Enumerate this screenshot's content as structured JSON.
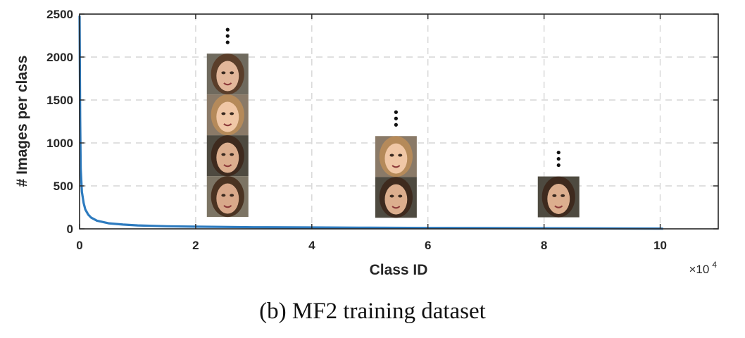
{
  "chart_data": {
    "type": "line",
    "title": "",
    "xlabel": "Class ID",
    "ylabel": "# Images per class",
    "x_exponent_label": "×10",
    "x_exponent_power": "4",
    "xlim": [
      0,
      11
    ],
    "ylim": [
      0,
      2500
    ],
    "x_ticks": [
      0,
      2,
      4,
      6,
      8,
      10
    ],
    "x_tick_labels": [
      "0",
      "2",
      "4",
      "6",
      "8",
      "10"
    ],
    "y_ticks": [
      0,
      500,
      1000,
      1500,
      2000,
      2500
    ],
    "y_tick_labels": [
      "0",
      "500",
      "1000",
      "1500",
      "2000",
      "2500"
    ],
    "grid": true,
    "series": [
      {
        "color": "#2d7bbf",
        "x": [
          0,
          0.01,
          0.02,
          0.04,
          0.07,
          0.1,
          0.15,
          0.2,
          0.3,
          0.5,
          0.75,
          1,
          1.5,
          2,
          3,
          4,
          5,
          6,
          7,
          8,
          9,
          10,
          10.05
        ],
        "y": [
          2480,
          1300,
          700,
          430,
          300,
          225,
          165,
          130,
          95,
          65,
          50,
          40,
          30,
          25,
          19,
          16,
          13,
          11,
          9,
          7,
          5,
          3,
          2
        ]
      }
    ],
    "annotations": [
      {
        "type": "face-stack",
        "x_center": 2.55,
        "faces": 4,
        "top_value": 2040,
        "bottom_value": 150
      },
      {
        "type": "face-stack",
        "x_center": 5.45,
        "faces": 2,
        "top_value": 1080,
        "bottom_value": 150
      },
      {
        "type": "face-stack",
        "x_center": 8.25,
        "faces": 1,
        "top_value": 610,
        "bottom_value": 150
      }
    ]
  },
  "caption": "(b)  MF2 training dataset"
}
